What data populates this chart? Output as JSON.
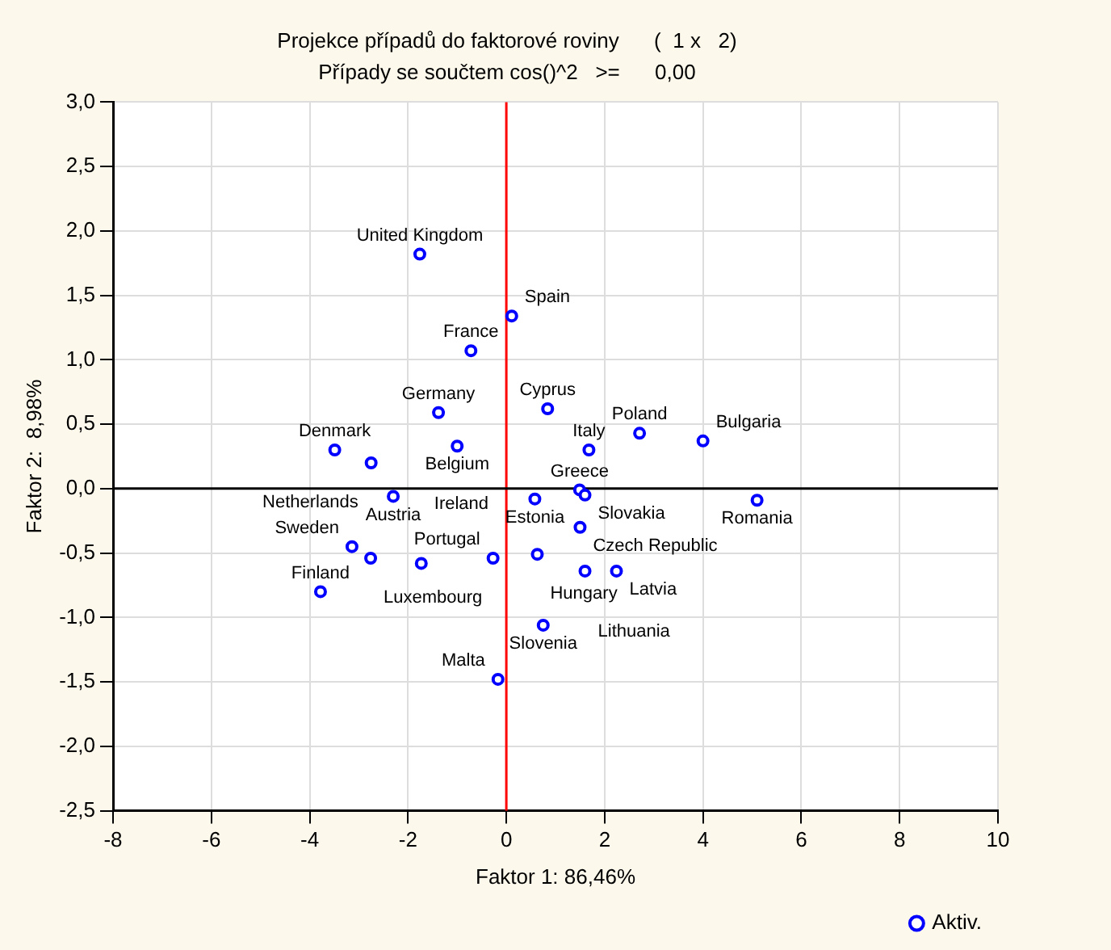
{
  "chart_data": {
    "type": "scatter",
    "title": "Projekce případů do faktorové roviny      (  1 x   2)",
    "subtitle": "Případy se součtem cos()^2   >=      0,00",
    "xlabel": "Faktor 1: 86,46%",
    "ylabel": "Faktor 2:  8,98%",
    "x": [
      -1.76,
      0.11,
      -0.72,
      -1.38,
      0.84,
      -1.0,
      -3.49,
      -2.75,
      -2.3,
      1.68,
      2.71,
      4.0,
      5.1,
      1.49,
      1.6,
      0.58,
      1.5,
      0.63,
      1.6,
      2.24,
      -0.27,
      0.75,
      -3.14,
      -2.76,
      -1.73,
      -3.78,
      -0.17
    ],
    "series": [
      {
        "name": "Aktiv.",
        "color": "#0000ff",
        "values": [
          1.82,
          1.34,
          1.07,
          0.59,
          0.62,
          0.33,
          0.3,
          0.2,
          -0.06,
          0.3,
          0.43,
          0.37,
          -0.09,
          -0.01,
          -0.05,
          -0.08,
          -0.3,
          -0.51,
          -0.64,
          -0.64,
          -0.54,
          -1.06,
          -0.45,
          -0.54,
          -0.58,
          -0.8,
          -1.48
        ]
      }
    ],
    "annotations": [
      {
        "text": "United Kingdom",
        "x": -1.76,
        "y": 1.82
      },
      {
        "text": "Spain",
        "x": 0.11,
        "y": 1.34
      },
      {
        "text": "France",
        "x": -0.72,
        "y": 1.07
      },
      {
        "text": "Germany",
        "x": -1.38,
        "y": 0.59
      },
      {
        "text": "Cyprus",
        "x": 0.84,
        "y": 0.62
      },
      {
        "text": "Belgium",
        "x": -1.0,
        "y": 0.33
      },
      {
        "text": "Denmark",
        "x": -3.49,
        "y": 0.3
      },
      {
        "text": "Netherlands",
        "x": -2.75,
        "y": 0.2
      },
      {
        "text": "Austria",
        "x": -2.3,
        "y": -0.06
      },
      {
        "text": "Italy",
        "x": 1.68,
        "y": 0.3
      },
      {
        "text": "Poland",
        "x": 2.71,
        "y": 0.43
      },
      {
        "text": "Bulgaria",
        "x": 4.0,
        "y": 0.37
      },
      {
        "text": "Romania",
        "x": 5.1,
        "y": -0.09
      },
      {
        "text": "Greece",
        "x": 1.49,
        "y": -0.01
      },
      {
        "text": "Slovakia",
        "x": 1.6,
        "y": -0.05
      },
      {
        "text": "Estonia",
        "x": 0.58,
        "y": -0.08
      },
      {
        "text": "Czech Republic",
        "x": 1.5,
        "y": -0.3
      },
      {
        "text": "Hungary",
        "x": 0.63,
        "y": -0.51
      },
      {
        "text": "Lithuania",
        "x": 1.6,
        "y": -0.64
      },
      {
        "text": "Latvia",
        "x": 2.24,
        "y": -0.64
      },
      {
        "text": "Portugal",
        "x": -0.27,
        "y": -0.54
      },
      {
        "text": "Slovenia",
        "x": 0.75,
        "y": -1.06
      },
      {
        "text": "Sweden",
        "x": -3.14,
        "y": -0.45
      },
      {
        "text": "Luxembourg",
        "x": -2.76,
        "y": -0.54
      },
      {
        "text": "Ireland",
        "x": -1.73,
        "y": -0.58
      },
      {
        "text": "Finland",
        "x": -3.78,
        "y": -0.8
      },
      {
        "text": "Malta",
        "x": -0.17,
        "y": -1.48
      }
    ],
    "xlim": [
      -8,
      10
    ],
    "xticks": [
      -8,
      -6,
      -4,
      -2,
      0,
      2,
      4,
      6,
      8,
      10
    ],
    "ylim": [
      -2.5,
      3.0
    ],
    "yticks": [
      {
        "value": -2.5,
        "label": "-2,5"
      },
      {
        "value": -2.0,
        "label": "-2,0"
      },
      {
        "value": -1.5,
        "label": "-1,5"
      },
      {
        "value": -1.0,
        "label": "-1,0"
      },
      {
        "value": -0.5,
        "label": "-0,5"
      },
      {
        "value": 0,
        "label": "0,0"
      },
      {
        "value": 0.5,
        "label": "0,5"
      },
      {
        "value": 1.0,
        "label": "1,0"
      },
      {
        "value": 1.5,
        "label": "1,5"
      },
      {
        "value": 2.0,
        "label": "2,0"
      },
      {
        "value": 2.5,
        "label": "2,5"
      },
      {
        "value": 3.0,
        "label": "3,0"
      }
    ],
    "ref_lines": [
      {
        "axis": "x",
        "value": 0,
        "color": "#ff0000"
      },
      {
        "axis": "y",
        "value": 0,
        "color": "#000000"
      }
    ],
    "grid": true,
    "legend": "bottom right",
    "marker": "circle"
  }
}
